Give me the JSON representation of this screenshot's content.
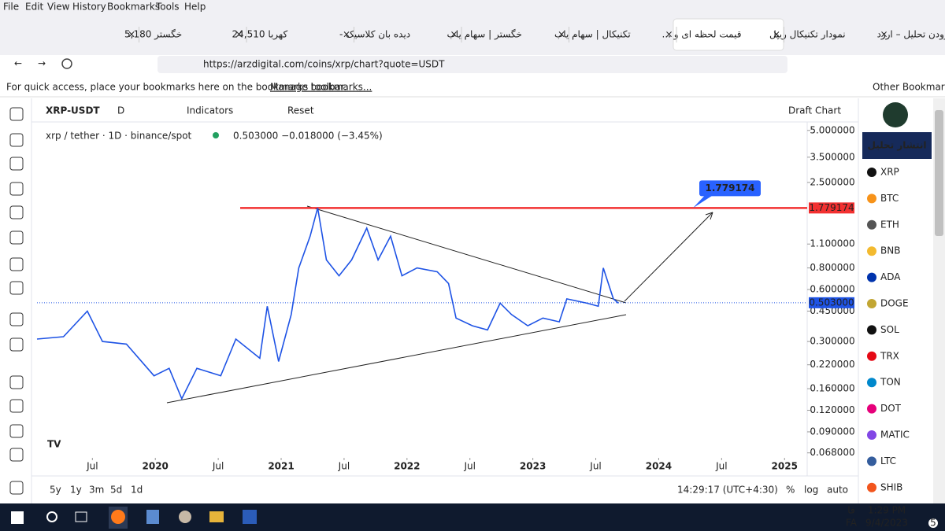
{
  "menu": [
    "File",
    "Edit",
    "View",
    "History",
    "Bookmarks",
    "Tools",
    "Help"
  ],
  "tabs": [
    "خگستر 5,180",
    "کهربا 24,510",
    "دیده بان کلاسیک -",
    "خگستر | سهام یاب",
    "تکنیکال | سهام یاب",
    "قیمت لحظه ای و ...",
    "نمودار تکنیکال ریپل",
    "افزودن تحلیل – ارزد"
  ],
  "url": "https://arzdigital.com/coins/xrp/chart?quote=USDT",
  "bookmarks_bar": {
    "text": "For quick access, place your bookmarks here on the bookmarks toolbar.",
    "link": "Manage bookmarks...",
    "other": "Other Bookmarks"
  },
  "toolbar": {
    "symbol": "XRP-USDT",
    "interval": "D",
    "indicators": "Indicators",
    "reset": "Reset",
    "draft": "Draft Chart"
  },
  "legend": {
    "title": "xrp / tether · 1D · binance/spot",
    "quote": "0.503000 −0.018000 (−3.45%)"
  },
  "chart": {
    "type": "line",
    "color": "#1e53e5",
    "log_scale": true,
    "x": [
      2019.06,
      2019.27,
      2019.46,
      2019.58,
      2019.77,
      2019.99,
      2020.11,
      2020.21,
      2020.33,
      2020.52,
      2020.64,
      2020.83,
      2020.89,
      2020.98,
      2021.08,
      2021.14,
      2021.23,
      2021.29,
      2021.36,
      2021.46,
      2021.56,
      2021.68,
      2021.77,
      2021.87,
      2021.96,
      2022.08,
      2022.24,
      2022.33,
      2022.39,
      2022.52,
      2022.64,
      2022.74,
      2022.83,
      2022.96,
      2023.08,
      2023.21,
      2023.27,
      2023.43,
      2023.52,
      2023.56,
      2023.6,
      2023.64,
      2023.68
    ],
    "values": [
      0.31,
      0.32,
      0.45,
      0.3,
      0.29,
      0.19,
      0.21,
      0.14,
      0.21,
      0.19,
      0.31,
      0.24,
      0.48,
      0.23,
      0.43,
      0.8,
      1.22,
      1.78,
      0.89,
      0.72,
      0.89,
      1.36,
      0.89,
      1.22,
      0.72,
      0.8,
      0.76,
      0.65,
      0.41,
      0.37,
      0.35,
      0.5,
      0.43,
      0.37,
      0.41,
      0.39,
      0.53,
      0.5,
      0.48,
      0.8,
      0.65,
      0.53,
      0.5
    ],
    "xlim": [
      2019.06,
      2025.18
    ],
    "ylim": [
      0.065,
      5.6
    ],
    "xticks": [
      {
        "value": 2019.5,
        "label": "Jul"
      },
      2020,
      {
        "value": 2020.5,
        "label": "Jul"
      },
      2021,
      {
        "value": 2021.5,
        "label": "Jul"
      },
      2022,
      {
        "value": 2022.5,
        "label": "Jul"
      },
      2023,
      {
        "value": 2023.5,
        "label": "Jul"
      },
      2024,
      {
        "value": 2024.5,
        "label": "Jul"
      },
      2025
    ],
    "yticks": [
      {
        "value": 5,
        "label": "5.000000"
      },
      {
        "value": 3.5,
        "label": "3.500000"
      },
      {
        "value": 2.5,
        "label": "2.500000"
      },
      {
        "value": 1.1,
        "label": "1.100000"
      },
      {
        "value": 0.8,
        "label": "0.800000"
      },
      {
        "value": 0.6,
        "label": "0.600000"
      },
      {
        "value": 0.45,
        "label": "0.450000"
      },
      {
        "value": 0.3,
        "label": "0.300000"
      },
      {
        "value": 0.22,
        "label": "0.220000"
      },
      {
        "value": 0.16,
        "label": "0.160000"
      },
      {
        "value": 0.12,
        "label": "0.120000"
      },
      {
        "value": 0.09,
        "label": "0.090000"
      },
      {
        "value": 0.068,
        "label": "0.068000"
      }
    ],
    "level": {
      "value": 1.779174,
      "label": "1.779174"
    },
    "last_price": {
      "value": 0.503,
      "label": "0.503000"
    }
  },
  "timeframes": [
    "5y",
    "1y",
    "3m",
    "5d",
    "1d"
  ],
  "clock": "14:29:17 (UTC+4:30)",
  "scale_options": [
    "%",
    "log",
    "auto"
  ],
  "sidebar": {
    "brand": "انتشار تحلیل",
    "coins": [
      "XRP",
      "BTC",
      "ETH",
      "BNB",
      "ADA",
      "DOGE",
      "SOL",
      "TRX",
      "TON",
      "DOT",
      "MATIC",
      "LTC",
      "SHIB"
    ]
  },
  "taskbar": {
    "lang_short": "فا",
    "lang": "FA",
    "time": "1:29 PM",
    "date": "9/4/2023",
    "badge": "5"
  }
}
